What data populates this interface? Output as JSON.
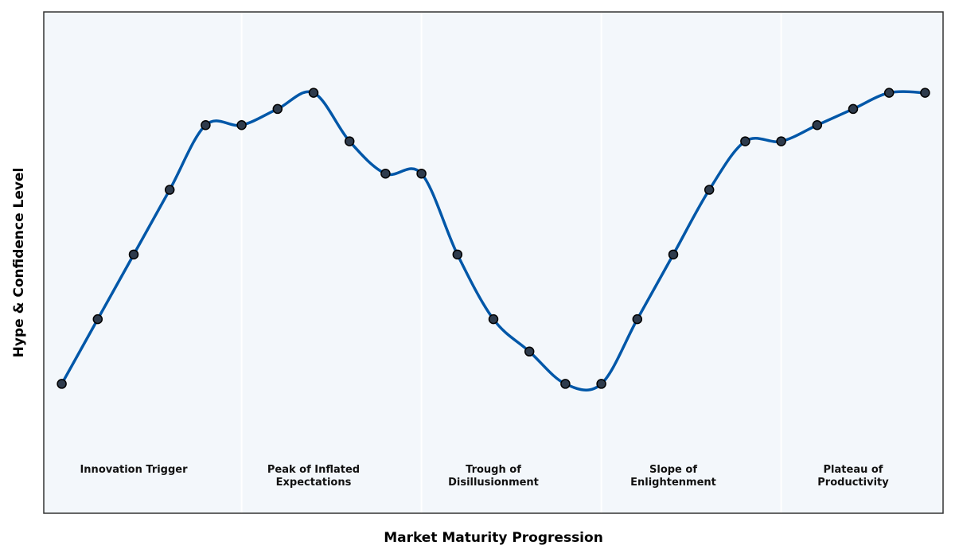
{
  "chart_data": {
    "type": "line",
    "x_label": "Market Maturity Progression",
    "y_label": "Hype & Confidence Level",
    "x": [
      0,
      1,
      2,
      3,
      4,
      5,
      6,
      7,
      8,
      9,
      10,
      11,
      12,
      13,
      14,
      15,
      16,
      17,
      18,
      19,
      20,
      21,
      22,
      23,
      24
    ],
    "values": [
      2,
      3,
      4,
      5,
      6,
      6,
      6.25,
      6.5,
      5.75,
      5.25,
      5.25,
      4,
      3,
      2.5,
      2,
      2,
      3,
      4,
      5,
      5.75,
      5.75,
      6,
      6.25,
      6.5,
      6.5
    ],
    "color": "#0057a8",
    "marker_color": "#2e3b4c",
    "xlim": [
      -0.5,
      24.5
    ],
    "ylim": [
      0,
      7.75
    ],
    "phase_boundaries": [
      5,
      10,
      15,
      20
    ],
    "phases": [
      {
        "label": "Innovation Trigger",
        "x": 2
      },
      {
        "label": "Peak of Inflated\nExpectations",
        "x": 7
      },
      {
        "label": "Trough of\nDisillusionment",
        "x": 12
      },
      {
        "label": "Slope of\nEnlightenment",
        "x": 17
      },
      {
        "label": "Plateau of\nProductivity",
        "x": 22
      }
    ]
  }
}
